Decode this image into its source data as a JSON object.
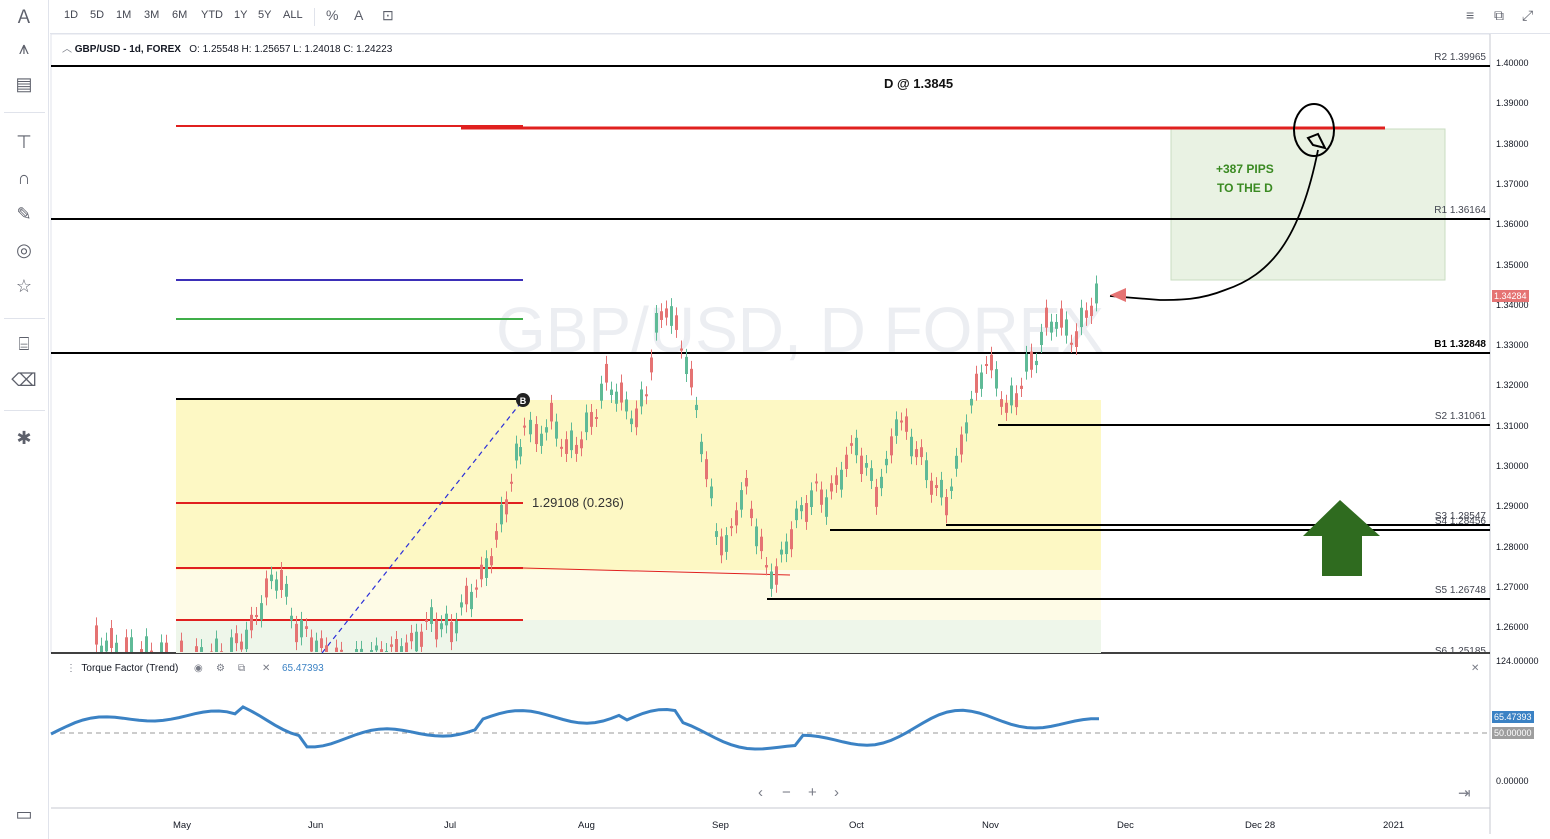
{
  "toolbar": {
    "ranges": [
      "1D",
      "5D",
      "1M",
      "3M",
      "6M",
      "YTD",
      "1Y",
      "5Y",
      "ALL"
    ],
    "percent_label": "%",
    "auto_label": "A",
    "lock_icon": "lock-icon"
  },
  "legend": {
    "symbol": "GBP/USD",
    "interval": "- 1d, FOREX",
    "o_label": "O:",
    "o_value": "1.25548",
    "h_label": "H:",
    "h_value": "1.25657",
    "l_label": "L:",
    "l_value": "1.24018",
    "c_label": "C:",
    "c_value": "1.24223"
  },
  "watermark": "GBP/USD, D FOREX",
  "annotations": {
    "target": "D @ 1.3845",
    "pips_line1": "+387 PIPS",
    "pips_line2": "TO THE D",
    "fib": "1.29108 (0.236)",
    "b_marker": "B"
  },
  "pivots": {
    "r2": "R2 1.39965",
    "r1": "R1 1.36164",
    "b1": "B1 1.32848",
    "s2": "S2 1.31061",
    "s3": "S3 1.28547",
    "s4": "S4 1.28456",
    "s5": "S5 1.26748",
    "s6": "S6 1.25185"
  },
  "price_axis": [
    "1.40000",
    "1.39000",
    "1.38000",
    "1.37000",
    "1.36000",
    "1.35000",
    "1.34000",
    "1.33000",
    "1.32000",
    "1.31000",
    "1.30000",
    "1.29000",
    "1.28000",
    "1.27000",
    "1.26000"
  ],
  "current_price": "1.34284",
  "indicator": {
    "name": "Torque Factor (Trend)",
    "value": "65.47393",
    "axis": [
      "124.00000",
      "0.00000"
    ],
    "value_badge": "65.47393",
    "level_badge": "50.00000"
  },
  "time_axis": [
    "May",
    "Jun",
    "Jul",
    "Aug",
    "Sep",
    "Oct",
    "Nov",
    "Dec",
    "Dec 28",
    "2021"
  ],
  "colors": {
    "up": "#5fba97",
    "down": "#e57373",
    "pivot_line": "#000000",
    "red_line": "#e0201f",
    "blue_line": "#3b2fb8",
    "green_line": "#3fae49",
    "target_zone": "#e6f0e0",
    "fib_zone": "#fdf9c7",
    "arrow": "#2f6b1f",
    "indicator": "#3b82c4",
    "current_badge": "#e57373"
  }
}
